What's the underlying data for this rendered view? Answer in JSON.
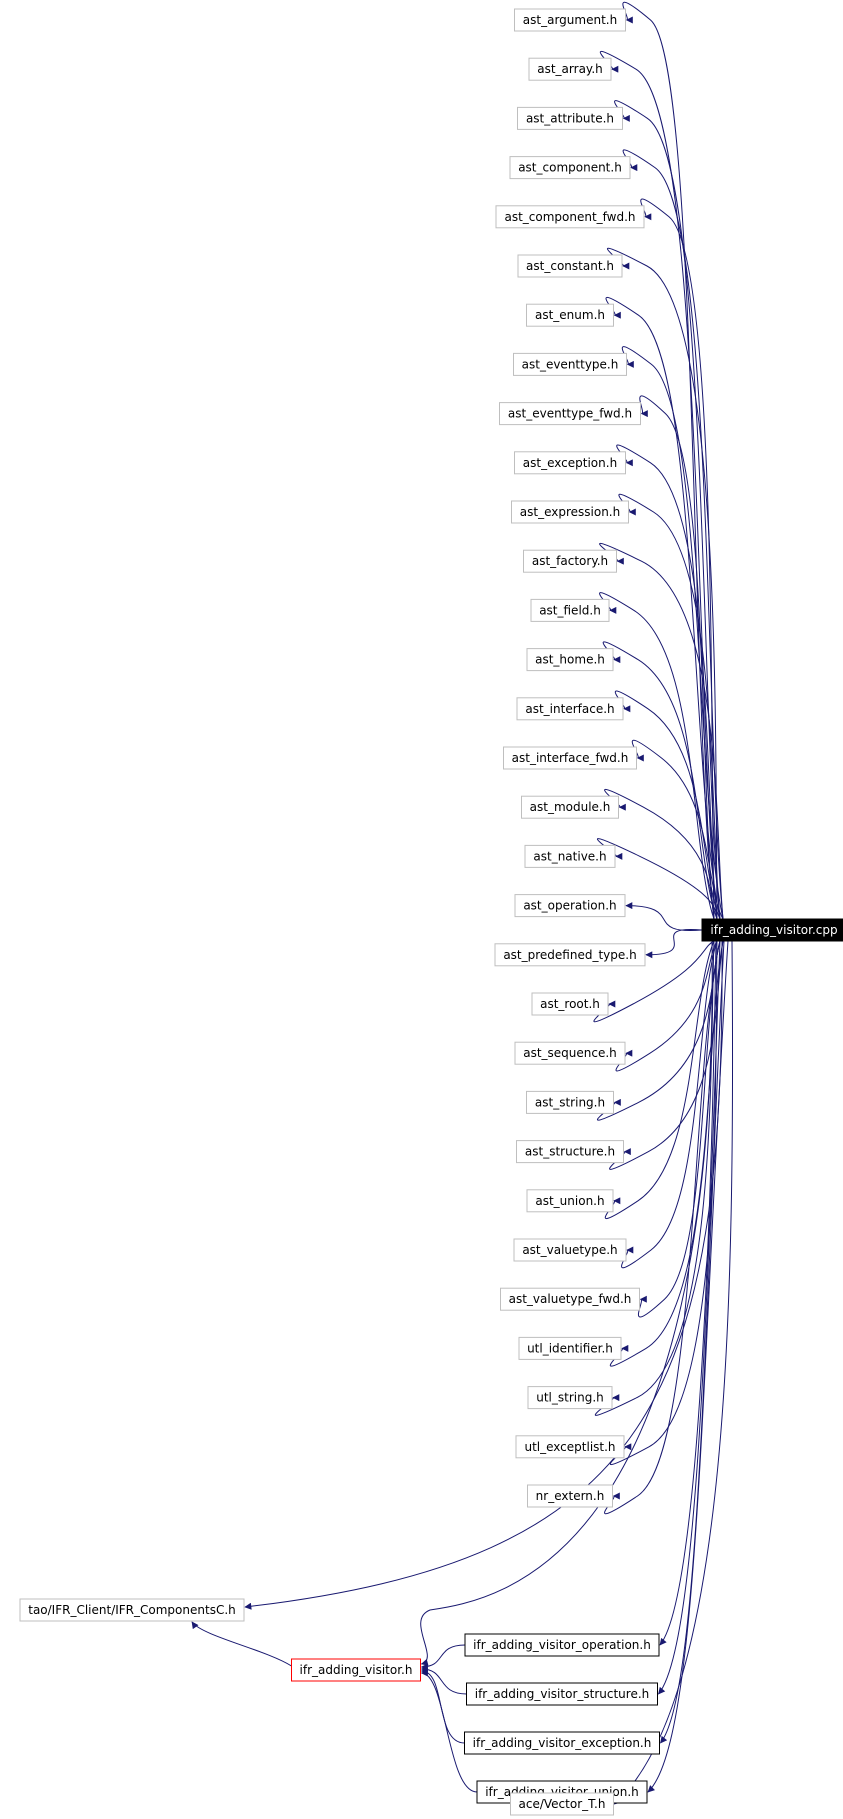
{
  "diagram": {
    "source_node": "ifr_adding_visitor.cpp",
    "include_nodes": [
      "ast_argument.h",
      "ast_array.h",
      "ast_attribute.h",
      "ast_component.h",
      "ast_component_fwd.h",
      "ast_constant.h",
      "ast_enum.h",
      "ast_eventtype.h",
      "ast_eventtype_fwd.h",
      "ast_exception.h",
      "ast_expression.h",
      "ast_factory.h",
      "ast_field.h",
      "ast_home.h",
      "ast_interface.h",
      "ast_interface_fwd.h",
      "ast_module.h",
      "ast_native.h",
      "ast_operation.h",
      "ast_predefined_type.h",
      "ast_root.h",
      "ast_sequence.h",
      "ast_string.h",
      "ast_structure.h",
      "ast_union.h",
      "ast_valuetype.h",
      "ast_valuetype_fwd.h",
      "utl_identifier.h",
      "utl_string.h",
      "utl_exceptlist.h",
      "nr_extern.h"
    ],
    "tao_node": "tao/IFR_Client/IFR_ComponentsC.h",
    "visitor_header": "ifr_adding_visitor.h",
    "visitor_subheaders": [
      "ifr_adding_visitor_operation.h",
      "ifr_adding_visitor_structure.h",
      "ifr_adding_visitor_exception.h",
      "ifr_adding_visitor_union.h"
    ],
    "vector_node": "ace/Vector_T.h",
    "colors": {
      "edge": "#191970",
      "node_border": "#bfbfbf",
      "source_fill": "#000000",
      "source_text": "#ffffff",
      "highlight_border": "#ff0000",
      "subheader_border": "#000000"
    }
  }
}
